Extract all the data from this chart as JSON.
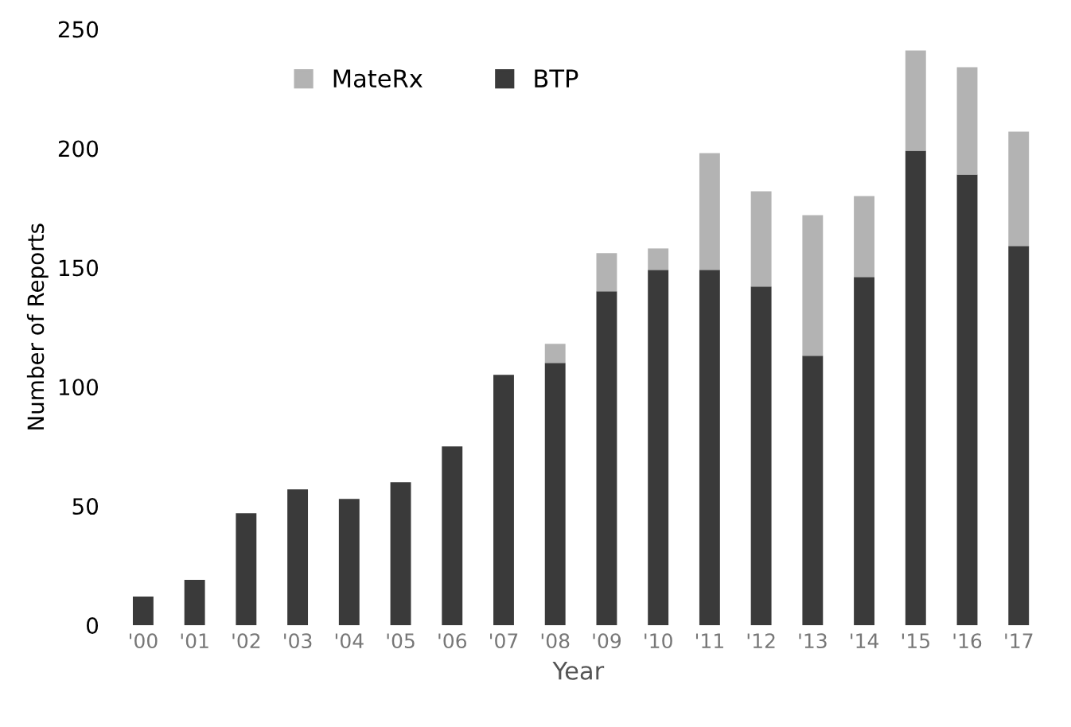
{
  "chart_data": {
    "type": "bar",
    "stacked": true,
    "xlabel": "Year",
    "ylabel": "Number of Reports",
    "categories": [
      "'00",
      "'01",
      "'02",
      "'03",
      "'04",
      "'05",
      "'06",
      "'07",
      "'08",
      "'09",
      "'10",
      "'11",
      "'12",
      "'13",
      "'14",
      "'15",
      "'16",
      "'17"
    ],
    "series": [
      {
        "name": "BTP",
        "color": "#3a3a3a",
        "values": [
          12,
          19,
          47,
          57,
          53,
          60,
          75,
          105,
          110,
          140,
          149,
          149,
          142,
          113,
          146,
          199,
          189,
          159
        ]
      },
      {
        "name": "MateRx",
        "color": "#b3b3b3",
        "values": [
          0,
          0,
          0,
          0,
          0,
          0,
          0,
          0,
          8,
          16,
          9,
          49,
          40,
          59,
          34,
          42,
          45,
          48
        ]
      }
    ],
    "ylim": [
      0,
      250
    ],
    "yticks": [
      0,
      50,
      100,
      150,
      200,
      250
    ],
    "grid": false,
    "legend": "top"
  }
}
